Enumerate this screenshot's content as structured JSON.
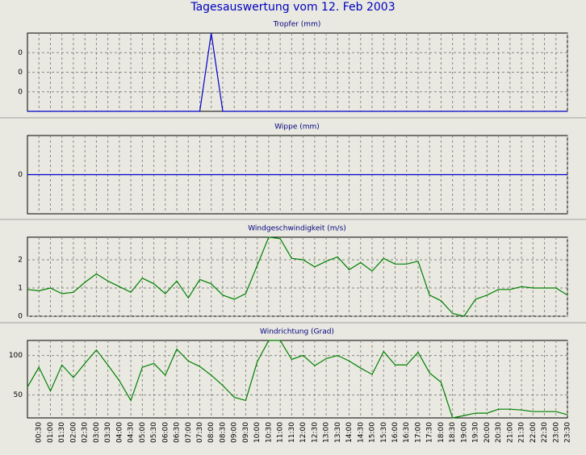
{
  "title": "Tagesauswertung vom 12. Feb 2003",
  "chart_data": [
    {
      "type": "line",
      "title": "Tropfer (mm)",
      "color": "#0000cc",
      "values": [
        0,
        0,
        0,
        0,
        0,
        0,
        0,
        0,
        0,
        0,
        0,
        0,
        0,
        0,
        0,
        0,
        0.1,
        0,
        0,
        0,
        0,
        0,
        0,
        0,
        0,
        0,
        0,
        0,
        0,
        0,
        0,
        0,
        0,
        0,
        0,
        0,
        0,
        0,
        0,
        0,
        0,
        0,
        0,
        0,
        0,
        0,
        0,
        0
      ],
      "ylim": [
        0,
        0.1
      ],
      "yticks": [
        {
          "value": 0.025,
          "label": "0"
        },
        {
          "value": 0.05,
          "label": "0"
        },
        {
          "value": 0.075,
          "label": "0"
        }
      ],
      "grid": true
    },
    {
      "type": "line",
      "title": "Wippe (mm)",
      "color": "#0000cc",
      "values": [
        0,
        0,
        0,
        0,
        0,
        0,
        0,
        0,
        0,
        0,
        0,
        0,
        0,
        0,
        0,
        0,
        0,
        0,
        0,
        0,
        0,
        0,
        0,
        0,
        0,
        0,
        0,
        0,
        0,
        0,
        0,
        0,
        0,
        0,
        0,
        0,
        0,
        0,
        0,
        0,
        0,
        0,
        0,
        0,
        0,
        0,
        0,
        0
      ],
      "ylim": [
        -1,
        1
      ],
      "yticks": [
        0
      ],
      "grid": true
    },
    {
      "type": "line",
      "title": "Windgeschwindigkeit (m/s)",
      "color": "#008000",
      "values": [
        0.95,
        0.9,
        1.0,
        0.8,
        0.85,
        1.2,
        1.5,
        1.25,
        1.05,
        0.85,
        1.35,
        1.15,
        0.8,
        1.25,
        0.65,
        1.3,
        1.15,
        0.75,
        0.6,
        0.8,
        1.8,
        2.8,
        2.75,
        2.05,
        2.0,
        1.75,
        1.95,
        2.1,
        1.65,
        1.9,
        1.6,
        2.05,
        1.85,
        1.85,
        1.95,
        0.75,
        0.55,
        0.1,
        0.0,
        0.6,
        0.75,
        0.95,
        0.95,
        1.05,
        1.0,
        1.0,
        1.0,
        0.75
      ],
      "ylim": [
        0,
        2.8
      ],
      "yticks": [
        0,
        1,
        2
      ],
      "grid": true
    },
    {
      "type": "line",
      "title": "Windrichtung (Grad)",
      "color": "#008000",
      "categories": [
        null,
        "00:30",
        "01:00",
        "01:30",
        "02:00",
        "02:30",
        "03:00",
        "03:30",
        "04:00",
        "04:30",
        "05:00",
        "05:30",
        "06:00",
        "06:30",
        "07:00",
        "07:30",
        "08:00",
        "08:30",
        "09:00",
        "09:30",
        "10:00",
        "10:30",
        "11:00",
        "11:30",
        "12:00",
        "12:30",
        "13:00",
        "13:30",
        "14:00",
        "14:30",
        "15:00",
        "15:30",
        "16:00",
        "16:30",
        "17:00",
        "17:30",
        "18:00",
        "18:30",
        "19:00",
        "19:30",
        "20:00",
        "20:30",
        "21:00",
        "21:30",
        "22:00",
        "22:30",
        "23:00",
        "23:30"
      ],
      "values": [
        60,
        85,
        55,
        88,
        72,
        90,
        107,
        88,
        68,
        43,
        85,
        90,
        75,
        108,
        93,
        86,
        75,
        62,
        47,
        43,
        92,
        119,
        119,
        95,
        100,
        87,
        96,
        100,
        93,
        84,
        76,
        105,
        88,
        88,
        104,
        78,
        66,
        21,
        24,
        27,
        27,
        32,
        32,
        31,
        29,
        29,
        29,
        25
      ],
      "ylim": [
        21,
        119
      ],
      "yticks": [
        50,
        100
      ],
      "grid": true
    }
  ]
}
